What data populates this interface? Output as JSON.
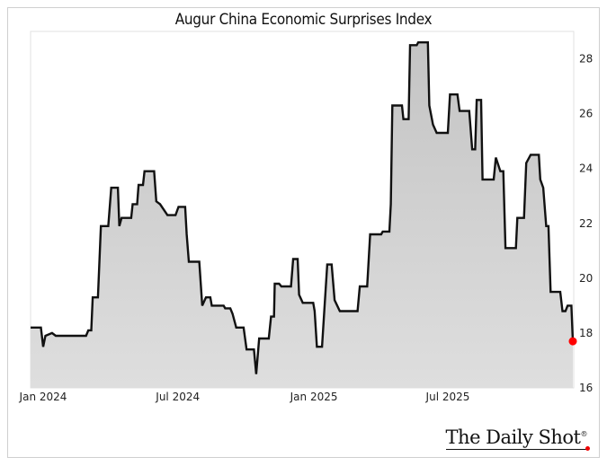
{
  "chart_data": {
    "type": "area",
    "title": "Augur China Economic Surprises Index",
    "xlabel": "",
    "ylabel": "",
    "y_axis_side": "right",
    "ylim": [
      16,
      29
    ],
    "xlim": [
      "2023-12-15",
      "2025-12-17"
    ],
    "y_ticks": [
      16,
      18,
      20,
      22,
      24,
      26,
      28
    ],
    "x_ticks": [
      {
        "date": "2024-01-01",
        "label": "Jan 2024"
      },
      {
        "date": "2024-07-01",
        "label": "Jul 2024"
      },
      {
        "date": "2025-01-01",
        "label": "Jan 2025"
      },
      {
        "date": "2025-07-01",
        "label": "Jul 2025"
      }
    ],
    "grid": false,
    "colors": {
      "line": "#111111",
      "fill_top": "#c4c4c4",
      "fill_bottom": "#dedede",
      "last_point": "#ff0000"
    },
    "last_point_marker": true,
    "series": [
      {
        "points": [
          [
            "2023-12-15",
            18.2
          ],
          [
            "2023-12-29",
            18.2
          ],
          [
            "2024-01-01",
            17.5
          ],
          [
            "2024-01-04",
            17.9
          ],
          [
            "2024-01-13",
            18.0
          ],
          [
            "2024-01-18",
            17.9
          ],
          [
            "2024-02-28",
            17.9
          ],
          [
            "2024-03-02",
            18.1
          ],
          [
            "2024-03-06",
            18.1
          ],
          [
            "2024-03-08",
            19.3
          ],
          [
            "2024-03-15",
            19.3
          ],
          [
            "2024-03-19",
            21.9
          ],
          [
            "2024-03-29",
            21.9
          ],
          [
            "2024-04-02",
            23.3
          ],
          [
            "2024-04-11",
            23.3
          ],
          [
            "2024-04-13",
            21.9
          ],
          [
            "2024-04-16",
            22.2
          ],
          [
            "2024-04-29",
            22.2
          ],
          [
            "2024-05-01",
            22.7
          ],
          [
            "2024-05-07",
            22.7
          ],
          [
            "2024-05-09",
            23.4
          ],
          [
            "2024-05-15",
            23.4
          ],
          [
            "2024-05-17",
            23.9
          ],
          [
            "2024-05-30",
            23.9
          ],
          [
            "2024-06-02",
            22.8
          ],
          [
            "2024-06-07",
            22.7
          ],
          [
            "2024-06-17",
            22.3
          ],
          [
            "2024-06-28",
            22.3
          ],
          [
            "2024-07-02",
            22.6
          ],
          [
            "2024-07-11",
            22.6
          ],
          [
            "2024-07-13",
            21.6
          ],
          [
            "2024-07-16",
            20.6
          ],
          [
            "2024-07-30",
            20.6
          ],
          [
            "2024-08-03",
            19.0
          ],
          [
            "2024-08-08",
            19.3
          ],
          [
            "2024-08-14",
            19.3
          ],
          [
            "2024-08-16",
            19.0
          ],
          [
            "2024-09-01",
            19.0
          ],
          [
            "2024-09-03",
            18.9
          ],
          [
            "2024-09-10",
            18.9
          ],
          [
            "2024-09-13",
            18.7
          ],
          [
            "2024-09-18",
            18.2
          ],
          [
            "2024-09-28",
            18.2
          ],
          [
            "2024-10-02",
            17.4
          ],
          [
            "2024-10-12",
            17.4
          ],
          [
            "2024-10-15",
            16.5
          ],
          [
            "2024-10-19",
            17.8
          ],
          [
            "2024-11-01",
            17.8
          ],
          [
            "2024-11-04",
            18.6
          ],
          [
            "2024-11-08",
            18.6
          ],
          [
            "2024-11-09",
            19.8
          ],
          [
            "2024-11-15",
            19.8
          ],
          [
            "2024-11-18",
            19.7
          ],
          [
            "2024-12-01",
            19.7
          ],
          [
            "2024-12-04",
            20.7
          ],
          [
            "2024-12-10",
            20.7
          ],
          [
            "2024-12-12",
            19.4
          ],
          [
            "2024-12-17",
            19.1
          ],
          [
            "2024-12-31",
            19.1
          ],
          [
            "2025-01-02",
            18.8
          ],
          [
            "2025-01-05",
            17.5
          ],
          [
            "2025-01-12",
            17.5
          ],
          [
            "2025-01-15",
            18.8
          ],
          [
            "2025-01-19",
            20.5
          ],
          [
            "2025-01-25",
            20.5
          ],
          [
            "2025-01-29",
            19.2
          ],
          [
            "2025-02-05",
            18.8
          ],
          [
            "2025-03-01",
            18.8
          ],
          [
            "2025-03-04",
            19.7
          ],
          [
            "2025-03-14",
            19.7
          ],
          [
            "2025-03-18",
            21.6
          ],
          [
            "2025-04-02",
            21.6
          ],
          [
            "2025-04-04",
            21.7
          ],
          [
            "2025-04-13",
            21.7
          ],
          [
            "2025-04-15",
            22.7
          ],
          [
            "2025-04-17",
            26.3
          ],
          [
            "2025-04-30",
            26.3
          ],
          [
            "2025-05-02",
            25.8
          ],
          [
            "2025-05-09",
            25.8
          ],
          [
            "2025-05-11",
            28.5
          ],
          [
            "2025-05-20",
            28.5
          ],
          [
            "2025-05-22",
            28.6
          ],
          [
            "2025-06-04",
            28.6
          ],
          [
            "2025-06-06",
            26.3
          ],
          [
            "2025-06-11",
            25.6
          ],
          [
            "2025-06-16",
            25.3
          ],
          [
            "2025-07-01",
            25.3
          ],
          [
            "2025-07-04",
            26.7
          ],
          [
            "2025-07-14",
            26.7
          ],
          [
            "2025-07-17",
            26.1
          ],
          [
            "2025-07-30",
            26.1
          ],
          [
            "2025-08-03",
            24.7
          ],
          [
            "2025-08-07",
            24.7
          ],
          [
            "2025-08-09",
            26.5
          ],
          [
            "2025-08-15",
            26.5
          ],
          [
            "2025-08-17",
            23.6
          ],
          [
            "2025-09-01",
            23.6
          ],
          [
            "2025-09-04",
            24.4
          ],
          [
            "2025-09-10",
            23.9
          ],
          [
            "2025-09-14",
            23.9
          ],
          [
            "2025-09-17",
            21.1
          ],
          [
            "2025-10-01",
            21.1
          ],
          [
            "2025-10-03",
            22.2
          ],
          [
            "2025-10-12",
            22.2
          ],
          [
            "2025-10-15",
            24.2
          ],
          [
            "2025-10-21",
            24.5
          ],
          [
            "2025-11-01",
            24.5
          ],
          [
            "2025-11-03",
            23.6
          ],
          [
            "2025-11-07",
            23.3
          ],
          [
            "2025-11-11",
            21.9
          ],
          [
            "2025-11-14",
            21.9
          ],
          [
            "2025-11-17",
            19.5
          ],
          [
            "2025-11-30",
            19.5
          ],
          [
            "2025-12-03",
            18.8
          ],
          [
            "2025-12-07",
            18.8
          ],
          [
            "2025-12-10",
            19.0
          ],
          [
            "2025-12-15",
            19.0
          ],
          [
            "2025-12-17",
            17.7
          ]
        ]
      }
    ]
  },
  "branding": {
    "logo": "The Daily Shot",
    "registered_mark": "®"
  }
}
